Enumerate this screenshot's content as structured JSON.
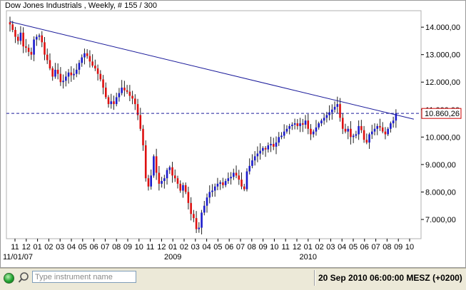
{
  "chart_data": {
    "type": "candlestick",
    "title": "Dow Jones Industrials , Weekly, # 155 / 300",
    "ylim": [
      6300,
      14600
    ],
    "y_ticks": [
      7000,
      8000,
      9000,
      10000,
      11000,
      12000,
      13000,
      14000
    ],
    "y_tick_labels": [
      "7.000,00",
      "8.000,00",
      "9.000,00",
      "10.000,00",
      "11.000,00",
      "12.000,00",
      "13.000,00",
      "14.000,00"
    ],
    "x_month_labels": [
      "11",
      "12",
      "01",
      "02",
      "03",
      "04",
      "05",
      "06",
      "07",
      "08",
      "09",
      "10",
      "11",
      "12",
      "01",
      "02",
      "03",
      "04",
      "05",
      "06",
      "07",
      "08",
      "09",
      "10",
      "11",
      "12",
      "01",
      "02",
      "03",
      "04",
      "05",
      "06",
      "07",
      "08",
      "09",
      "10"
    ],
    "x_first_date": "11/01/07",
    "x_year_labels": [
      "2009",
      "2010"
    ],
    "x_year_label_month_index": [
      14,
      26
    ],
    "current_price": 10860.26,
    "current_price_label": "10.860,26",
    "up_color": "#1a1acc",
    "down_color": "#dd1010",
    "trendline": {
      "start": [
        "11/01/07",
        14200
      ],
      "end": [
        "10/2010",
        10650
      ],
      "color": "#1a1a9a"
    },
    "weekly_closes": [
      14100,
      13900,
      13650,
      13500,
      13800,
      13300,
      13250,
      13100,
      13000,
      13550,
      13650,
      13700,
      13450,
      13000,
      12800,
      12500,
      12200,
      12450,
      12300,
      12000,
      12050,
      12200,
      12350,
      12250,
      12300,
      12450,
      12700,
      12900,
      13050,
      12950,
      12750,
      12600,
      12500,
      12300,
      12100,
      11800,
      11450,
      11200,
      11300,
      11200,
      11450,
      11600,
      11800,
      11700,
      11650,
      11500,
      11400,
      11200,
      10800,
      10300,
      9700,
      8500,
      8200,
      8600,
      9300,
      8700,
      8300,
      8400,
      8500,
      8800,
      8900,
      8600,
      8500,
      8300,
      8050,
      8250,
      8000,
      7600,
      7200,
      7050,
      6650,
      6700,
      7250,
      7500,
      7800,
      8000,
      8050,
      8200,
      8300,
      8350,
      8250,
      8400,
      8500,
      8550,
      8700,
      8600,
      8450,
      8200,
      8100,
      8750,
      8950,
      9150,
      9300,
      9400,
      9500,
      9600,
      9550,
      9700,
      9750,
      9650,
      9800,
      10000,
      10050,
      10200,
      10300,
      10400,
      10450,
      10500,
      10400,
      10500,
      10450,
      10600,
      10300,
      10100,
      10200,
      10350,
      10500,
      10600,
      10700,
      10800,
      10900,
      11000,
      11100,
      11200,
      10700,
      10300,
      10200,
      10300,
      10000,
      10050,
      10100,
      10400,
      10250,
      9900,
      9800,
      10100,
      10200,
      10300,
      10400,
      10350,
      10200,
      10100,
      10300,
      10500,
      10600,
      10860
    ]
  },
  "statusbar": {
    "input_placeholder": "Type instrument name",
    "datetime": "20 Sep 2010 06:00:00  MESZ (+0200)"
  }
}
